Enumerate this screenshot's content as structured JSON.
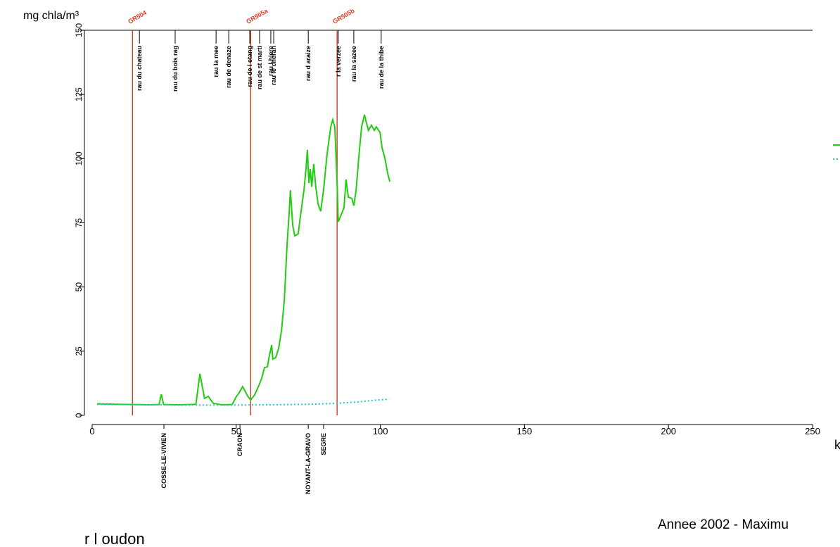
{
  "chart_data": {
    "type": "line",
    "y_label": "mg chla/m³",
    "x_label": "k",
    "title": "Annee 2002 - Maximu",
    "subtitle": "r l oudon",
    "xlim": [
      0,
      250
    ],
    "xticks": [
      0,
      50,
      100,
      150,
      200,
      250
    ],
    "ylim": [
      0,
      150
    ],
    "yticks": [
      0,
      25,
      50,
      75,
      100,
      125,
      150
    ],
    "series": [
      {
        "color": "#22cc11",
        "style": "solid",
        "x": [
          1.7,
          10,
          20,
          23.2,
          24,
          24.8,
          30,
          36,
          37.4,
          39,
          40.3,
          42,
          45,
          48.6,
          49.8,
          51,
          52.2,
          53,
          54,
          55,
          56.4,
          57.9,
          58.8,
          59.8,
          60.8,
          61.5,
          62.3,
          62.7,
          63.7,
          64.7,
          65.7,
          66.7,
          67.6,
          68.4,
          68.8,
          69.6,
          70.3,
          71.5,
          72.5,
          73.5,
          74.2,
          74.7,
          75.2,
          75.7,
          76.2,
          76.9,
          77.6,
          78.4,
          79.3,
          80.3,
          81.5,
          82.8,
          83.5,
          84.2,
          85,
          85.4,
          86.4,
          87.4,
          88.1,
          88.9,
          90.1,
          90.8,
          91.6,
          92.5,
          93.5,
          94.5,
          95.2,
          95.9,
          96.9,
          97.9,
          98.6,
          99.9,
          100.6,
          101.6,
          102.5,
          103.3
        ],
        "values": [
          4.5,
          4.3,
          4.1,
          4.2,
          8.2,
          4.2,
          4.1,
          4.3,
          16.2,
          6.6,
          7.4,
          4.7,
          4.1,
          4.2,
          6.9,
          8.8,
          11.2,
          9.6,
          7.4,
          6,
          8,
          11.8,
          14.3,
          18.6,
          18.9,
          23.3,
          27.4,
          21.9,
          22.5,
          26,
          32.9,
          45.2,
          65.8,
          79.5,
          87.7,
          74,
          69.9,
          70.7,
          79.5,
          87.7,
          96,
          103.4,
          90.5,
          96,
          89,
          97.9,
          89,
          82.3,
          79.5,
          87.7,
          101.5,
          112.4,
          115.2,
          112.4,
          90.5,
          75.4,
          78.1,
          80.9,
          91.9,
          85,
          84.5,
          81.7,
          87.7,
          100.1,
          112.4,
          117.1,
          113.8,
          111,
          113,
          111,
          112.4,
          110.2,
          104.2,
          100.1,
          94.6,
          91
        ]
      },
      {
        "color": "#22c8c8",
        "style": "dotted",
        "x": [
          1.7,
          15,
          30,
          45,
          60,
          75,
          85,
          92,
          98,
          103
        ],
        "values": [
          4.3,
          4.2,
          4.0,
          4.0,
          4.1,
          4.3,
          4.7,
          5.2,
          5.9,
          6.3
        ]
      }
    ],
    "stations": [
      {
        "label": "GR504",
        "x": 14
      },
      {
        "label": "GR505a",
        "x": 55
      },
      {
        "label": "GR505b",
        "x": 85
      }
    ],
    "tributaries": [
      {
        "label": "rau du chateau",
        "x": 16.4
      },
      {
        "label": "rau du bois rag",
        "x": 28.8
      },
      {
        "label": "rau la mee",
        "x": 43
      },
      {
        "label": "rau de denaze",
        "x": 47.4
      },
      {
        "label": "rau de l etang",
        "x": 54.7
      },
      {
        "label": "rau de st marti",
        "x": 58.1
      },
      {
        "label": "rau l hiere",
        "x": 62
      },
      {
        "label": "rau le cheran",
        "x": 63
      },
      {
        "label": "rau d araize",
        "x": 75
      },
      {
        "label": "r la verzee",
        "x": 85.4
      },
      {
        "label": "rau la sazee",
        "x": 90.8
      },
      {
        "label": "rau de la thibe",
        "x": 100.3
      }
    ],
    "towns": [
      {
        "label": "COSSE-LE-VIVIEN",
        "x": 24.9
      },
      {
        "label": "CRAON",
        "x": 51.3
      },
      {
        "label": "NOYANT-LA-GRAVO",
        "x": 75
      },
      {
        "label": "SEGRE",
        "x": 80.3
      }
    ]
  }
}
